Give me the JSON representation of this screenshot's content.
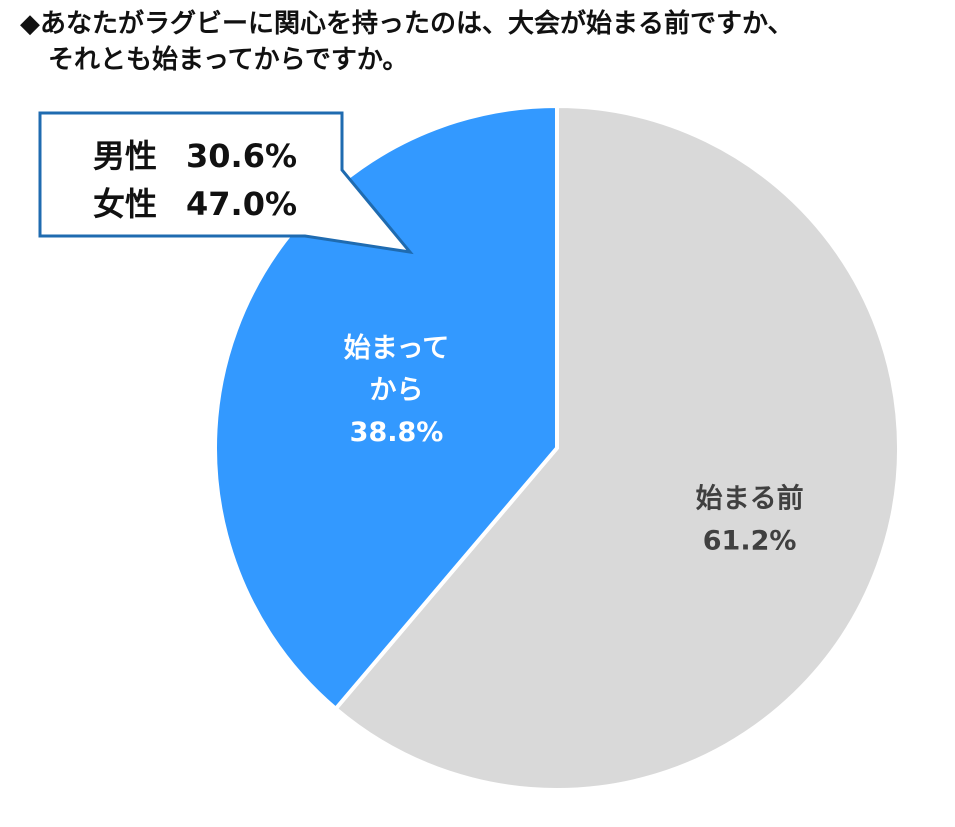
{
  "title": {
    "line1": "◆あなたがラグビーに関心を持ったのは、大会が始まる前ですか、",
    "line2": "それとも始まってからですか。"
  },
  "chart_data": {
    "type": "pie",
    "start_angle_deg": 0,
    "direction": "clockwise",
    "slices": [
      {
        "label": "始まる前",
        "value": 61.2,
        "value_text": "61.2%",
        "color": "#d9d9d9",
        "text_color": "#404040"
      },
      {
        "label_lines": [
          "始まって",
          "から"
        ],
        "value": 38.8,
        "value_text": "38.8%",
        "color": "#3399ff",
        "text_color": "#ffffff"
      }
    ],
    "callout": {
      "rows": [
        {
          "label": "男性",
          "value": "30.6%"
        },
        {
          "label": "女性",
          "value": "47.0%"
        }
      ],
      "border_color": "#1f6bb0"
    }
  }
}
